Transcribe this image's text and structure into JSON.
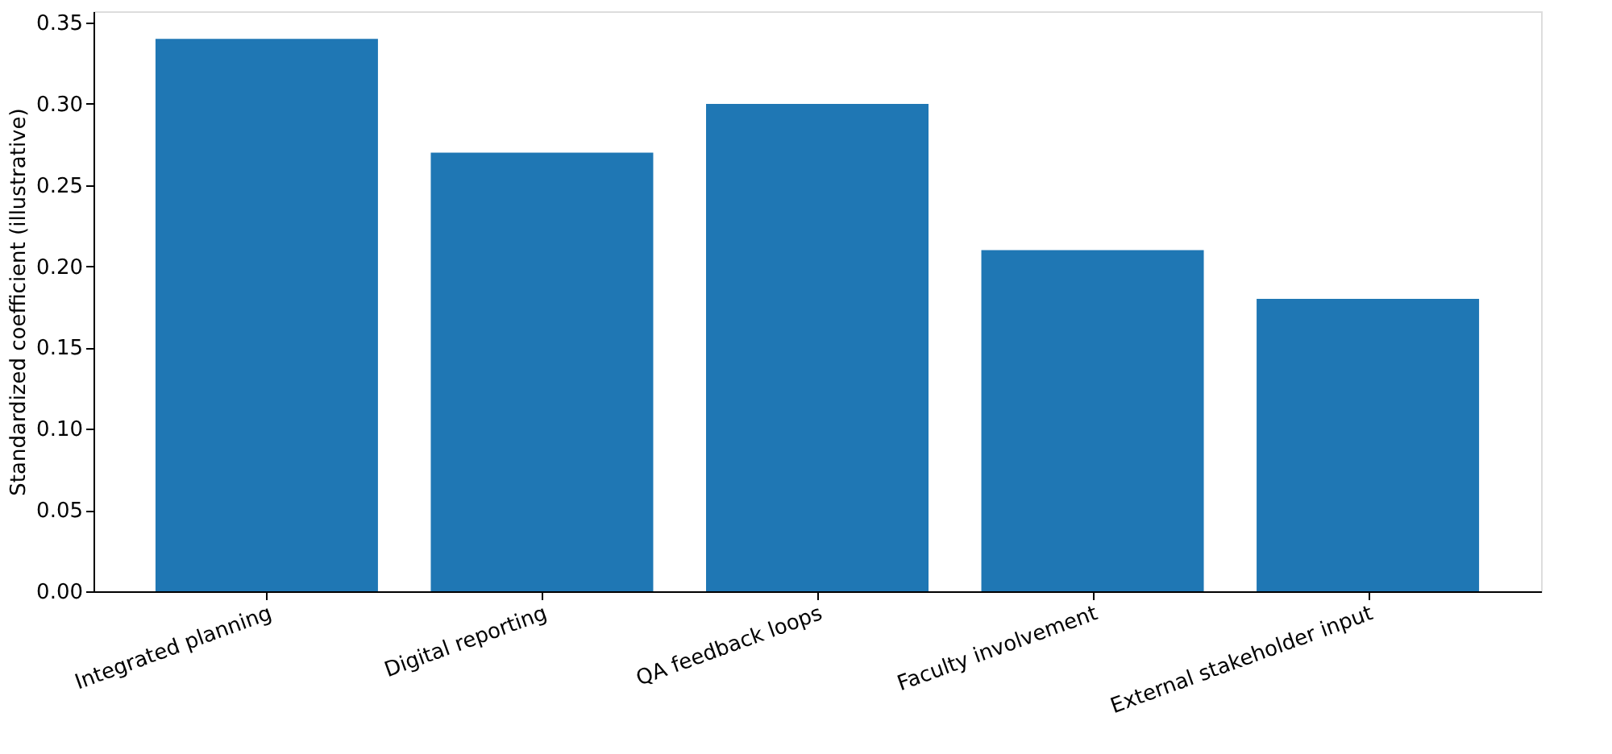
{
  "chart_data": {
    "type": "bar",
    "ylabel": "Standardized coefficient (illustrative)",
    "categories": [
      "Integrated planning",
      "Digital reporting",
      "QA feedback loops",
      "Faculty involvement",
      "External stakeholder input"
    ],
    "values": [
      0.34,
      0.27,
      0.3,
      0.21,
      0.18
    ],
    "color": "#1f77b4",
    "ylim": [
      0,
      0.357
    ],
    "yticks": [
      {
        "value": 0,
        "label": "0.00"
      },
      {
        "value": 0.05,
        "label": "0.05"
      },
      {
        "value": 0.1,
        "label": "0.10"
      },
      {
        "value": 0.15,
        "label": "0.15"
      },
      {
        "value": 0.2,
        "label": "0.20"
      },
      {
        "value": 0.25,
        "label": "0.25"
      },
      {
        "value": 0.3,
        "label": "0.30"
      },
      {
        "value": 0.35,
        "label": "0.35"
      }
    ],
    "grid": false
  }
}
